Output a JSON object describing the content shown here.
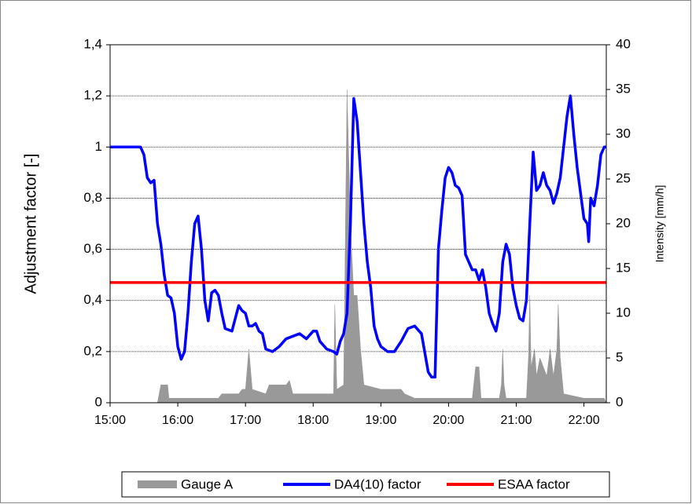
{
  "chart_data": {
    "type": "line",
    "ylabel": "Adjustment factor [-]",
    "y2label": "Intensity [mm/h]",
    "xlim": [
      15,
      22.33
    ],
    "xticks": [
      {
        "value": 15,
        "label": "15:00"
      },
      {
        "value": 16,
        "label": "16:00"
      },
      {
        "value": 17,
        "label": "17:00"
      },
      {
        "value": 18,
        "label": "18:00"
      },
      {
        "value": 19,
        "label": "19:00"
      },
      {
        "value": 20,
        "label": "20:00"
      },
      {
        "value": 21,
        "label": "21:00"
      },
      {
        "value": 22,
        "label": "22:00"
      }
    ],
    "ylim": [
      0,
      1.4
    ],
    "yticks": [
      0,
      {
        "value": 0.2,
        "label": "0,2"
      },
      {
        "value": 0.4,
        "label": "0,4"
      },
      {
        "value": 0.6,
        "label": "0,6"
      },
      {
        "value": 0.8,
        "label": "0,8"
      },
      1,
      {
        "value": 1.2,
        "label": "1,2"
      },
      {
        "value": 1.4,
        "label": "1,4"
      }
    ],
    "y2lim": [
      0,
      40
    ],
    "y2ticks": [
      0,
      5,
      10,
      15,
      20,
      25,
      30,
      35,
      40
    ],
    "grid": true,
    "legend": "bottom",
    "series": [
      {
        "name": "Gauge A",
        "color": "#999999",
        "type": "area",
        "axis": "y2",
        "x": [
          15.0,
          15.7,
          15.75,
          15.85,
          15.87,
          16.6,
          16.65,
          16.9,
          16.95,
          17.0,
          17.05,
          17.1,
          17.3,
          17.35,
          17.6,
          17.65,
          17.7,
          18.1,
          18.3,
          18.32,
          18.35,
          18.45,
          18.5,
          18.55,
          18.6,
          18.65,
          18.7,
          18.75,
          19.0,
          19.3,
          19.35,
          19.5,
          19.8,
          20.35,
          20.4,
          20.45,
          20.48,
          20.75,
          20.78,
          20.8,
          20.82,
          20.85,
          21.15,
          21.18,
          21.2,
          21.22,
          21.27,
          21.3,
          21.35,
          21.45,
          21.5,
          21.55,
          21.6,
          21.62,
          21.65,
          21.7,
          22.0,
          22.3,
          22.33
        ],
        "values": [
          0,
          0,
          2,
          2,
          0.5,
          0.5,
          1,
          1,
          1.5,
          1.5,
          6,
          1.5,
          1,
          2,
          2,
          2.5,
          1,
          1,
          1,
          11,
          1.5,
          2,
          35,
          20,
          12,
          12,
          6,
          2,
          1.5,
          1.5,
          1,
          0.5,
          0.5,
          0.5,
          4,
          4,
          0.5,
          0.5,
          2,
          6,
          2,
          0.5,
          0.5,
          5,
          12,
          4,
          6,
          3,
          5,
          3,
          6,
          3,
          6,
          11,
          5,
          1,
          0.5,
          0.5,
          0
        ]
      },
      {
        "name": "DA4(10) factor",
        "color": "#0000ff",
        "type": "line",
        "x": [
          15.0,
          15.45,
          15.5,
          15.55,
          15.6,
          15.65,
          15.7,
          15.75,
          15.8,
          15.85,
          15.9,
          15.95,
          16.0,
          16.05,
          16.1,
          16.15,
          16.2,
          16.25,
          16.3,
          16.35,
          16.4,
          16.45,
          16.5,
          16.55,
          16.6,
          16.65,
          16.7,
          16.8,
          16.9,
          16.95,
          17.0,
          17.05,
          17.1,
          17.15,
          17.2,
          17.25,
          17.3,
          17.4,
          17.5,
          17.6,
          17.7,
          17.8,
          17.9,
          18.0,
          18.05,
          18.1,
          18.2,
          18.3,
          18.35,
          18.4,
          18.45,
          18.5,
          18.55,
          18.6,
          18.65,
          18.7,
          18.75,
          18.8,
          18.85,
          18.9,
          18.95,
          19.0,
          19.1,
          19.2,
          19.3,
          19.4,
          19.5,
          19.6,
          19.7,
          19.75,
          19.8,
          19.85,
          19.9,
          19.95,
          20.0,
          20.05,
          20.1,
          20.15,
          20.2,
          20.25,
          20.3,
          20.35,
          20.4,
          20.45,
          20.5,
          20.55,
          20.6,
          20.65,
          20.7,
          20.75,
          20.8,
          20.85,
          20.9,
          20.95,
          21.0,
          21.05,
          21.1,
          21.15,
          21.2,
          21.25,
          21.3,
          21.35,
          21.4,
          21.45,
          21.5,
          21.55,
          21.6,
          21.65,
          21.7,
          21.75,
          21.8,
          21.85,
          21.9,
          21.95,
          22.0,
          22.05,
          22.07,
          22.1,
          22.15,
          22.2,
          22.25,
          22.3,
          22.33
        ],
        "values": [
          1.0,
          1.0,
          0.97,
          0.88,
          0.86,
          0.87,
          0.7,
          0.62,
          0.5,
          0.42,
          0.41,
          0.35,
          0.22,
          0.17,
          0.2,
          0.35,
          0.55,
          0.7,
          0.73,
          0.6,
          0.4,
          0.32,
          0.43,
          0.44,
          0.42,
          0.35,
          0.29,
          0.28,
          0.38,
          0.36,
          0.35,
          0.3,
          0.3,
          0.31,
          0.28,
          0.27,
          0.21,
          0.2,
          0.22,
          0.25,
          0.26,
          0.27,
          0.25,
          0.28,
          0.28,
          0.24,
          0.21,
          0.2,
          0.19,
          0.24,
          0.27,
          0.35,
          0.7,
          1.19,
          1.1,
          0.9,
          0.7,
          0.55,
          0.45,
          0.3,
          0.25,
          0.22,
          0.2,
          0.2,
          0.24,
          0.29,
          0.3,
          0.27,
          0.12,
          0.1,
          0.1,
          0.6,
          0.75,
          0.88,
          0.92,
          0.9,
          0.85,
          0.84,
          0.81,
          0.58,
          0.55,
          0.52,
          0.52,
          0.48,
          0.52,
          0.45,
          0.35,
          0.31,
          0.28,
          0.35,
          0.55,
          0.62,
          0.58,
          0.45,
          0.38,
          0.33,
          0.32,
          0.4,
          0.7,
          0.98,
          0.83,
          0.85,
          0.9,
          0.85,
          0.83,
          0.78,
          0.82,
          0.88,
          1.0,
          1.12,
          1.2,
          1.05,
          0.92,
          0.82,
          0.72,
          0.7,
          0.63,
          0.8,
          0.77,
          0.85,
          0.97,
          1.0,
          1.0
        ]
      },
      {
        "name": "ESAA factor",
        "color": "#ff0000",
        "type": "line",
        "x": [
          15.0,
          22.33
        ],
        "values": [
          0.47,
          0.47
        ]
      }
    ]
  }
}
